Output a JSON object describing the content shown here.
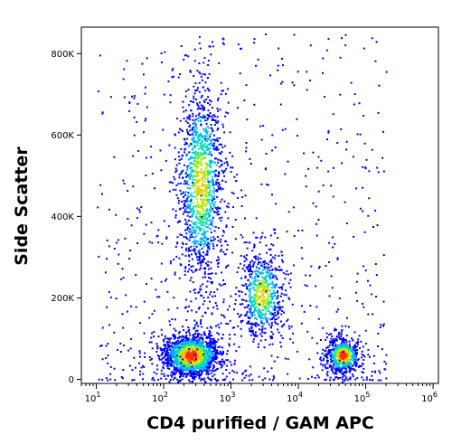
{
  "chart_data": {
    "type": "scatter",
    "plot_style": "flow cytometry density dot plot",
    "xlabel": "CD4 purified / GAM APC",
    "ylabel": "Side Scatter",
    "x_scale": "log",
    "xlim": [
      6,
      1200000
    ],
    "ylim": [
      -10000,
      865000
    ],
    "x_ticks": [
      {
        "value": 10,
        "base": "10",
        "exp": "1"
      },
      {
        "value": 100,
        "base": "10",
        "exp": "2"
      },
      {
        "value": 1000,
        "base": "10",
        "exp": "3"
      },
      {
        "value": 10000,
        "base": "10",
        "exp": "4"
      },
      {
        "value": 100000,
        "base": "10",
        "exp": "5"
      },
      {
        "value": 1000000,
        "base": "10",
        "exp": "6"
      }
    ],
    "y_ticks": [
      {
        "value": 0,
        "label": "0"
      },
      {
        "value": 200000,
        "label": "200K"
      },
      {
        "value": 400000,
        "label": "400K"
      },
      {
        "value": 600000,
        "label": "600K"
      },
      {
        "value": 800000,
        "label": "800K"
      }
    ],
    "populations": [
      {
        "x_center": 250,
        "y_center": 60000,
        "x_spread_decades": 0.22,
        "y_spread": 28000,
        "peak_density": "high"
      },
      {
        "x_center": 350,
        "y_center": 480000,
        "x_spread_decades": 0.17,
        "y_spread": 130000,
        "peak_density": "medium"
      },
      {
        "x_center": 2800,
        "y_center": 210000,
        "x_spread_decades": 0.17,
        "y_spread": 55000,
        "peak_density": "medium"
      },
      {
        "x_center": 45000,
        "y_center": 60000,
        "x_spread_decades": 0.13,
        "y_spread": 22000,
        "peak_density": "high"
      }
    ],
    "density_colormap": [
      "#0000ff",
      "#00b0ff",
      "#00e0b0",
      "#b0f000",
      "#ffc000",
      "#ff3000"
    ]
  }
}
